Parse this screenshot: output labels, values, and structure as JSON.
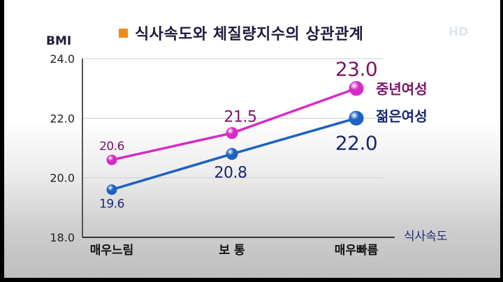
{
  "badge": "HD",
  "chart_data": {
    "type": "line",
    "title": "식사속도와 체질량지수의 상관관계",
    "ylabel": "BMI",
    "xlabel": "식사속도",
    "categories": [
      "매우느림",
      "보 통",
      "매우빠름"
    ],
    "yticks": [
      "24.0",
      "22.0",
      "20.0",
      "18.0"
    ],
    "ylim": [
      18.0,
      24.0
    ],
    "grid": true,
    "series": [
      {
        "name": "중년여성",
        "values": [
          20.6,
          21.5,
          23.0
        ],
        "labels": [
          "20.6",
          "21.5",
          "23.0"
        ],
        "color": "#d62ac6",
        "label_color": "#7a1464"
      },
      {
        "name": "젊은여성",
        "values": [
          19.6,
          20.8,
          22.0
        ],
        "labels": [
          "19.6",
          "20.8",
          "22.0"
        ],
        "color": "#1d62c0",
        "label_color": "#1a2670"
      }
    ]
  }
}
